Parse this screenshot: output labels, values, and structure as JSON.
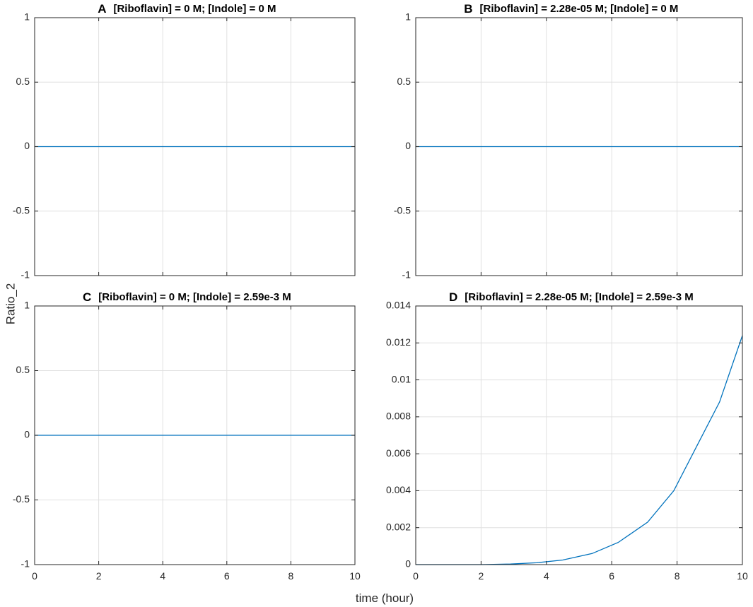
{
  "figure": {
    "ylabel": "Ratio_2",
    "xlabel": "time (hour)",
    "series_color": "#0072BD"
  },
  "chart_data": [
    {
      "type": "line",
      "letter": "A",
      "title": "[Riboflavin] = 0 M; [Indole] = 0 M",
      "xlim": [
        0,
        10
      ],
      "ylim": [
        -1,
        1
      ],
      "xticks": [
        0,
        2,
        4,
        6,
        8,
        10
      ],
      "yticks": [
        1,
        0.5,
        0,
        -0.5,
        -1
      ],
      "ytick_labels": [
        "1",
        "0.5",
        "0",
        "-0.5",
        "-1"
      ],
      "show_xtick_labels": false,
      "grid": true,
      "series": [
        {
          "x": [
            0,
            10
          ],
          "y": [
            0,
            0
          ]
        }
      ]
    },
    {
      "type": "line",
      "letter": "B",
      "title": "[Riboflavin] = 2.28e-05 M; [Indole] = 0 M",
      "xlim": [
        0,
        10
      ],
      "ylim": [
        -1,
        1
      ],
      "xticks": [
        0,
        2,
        4,
        6,
        8,
        10
      ],
      "yticks": [
        1,
        0.5,
        0,
        -0.5,
        -1
      ],
      "ytick_labels": [
        "1",
        "0.5",
        "0",
        "-0.5",
        "-1"
      ],
      "show_xtick_labels": false,
      "grid": true,
      "series": [
        {
          "x": [
            0,
            10
          ],
          "y": [
            0,
            0
          ]
        }
      ]
    },
    {
      "type": "line",
      "letter": "C",
      "title": "[Riboflavin] = 0 M; [Indole] = 2.59e-3 M",
      "xlim": [
        0,
        10
      ],
      "ylim": [
        -1,
        1
      ],
      "xticks": [
        0,
        2,
        4,
        6,
        8,
        10
      ],
      "xtick_labels": [
        "0",
        "2",
        "4",
        "6",
        "8",
        "10"
      ],
      "yticks": [
        1,
        0.5,
        0,
        -0.5,
        -1
      ],
      "ytick_labels": [
        "1",
        "0.5",
        "0",
        "-0.5",
        "-1"
      ],
      "show_xtick_labels": true,
      "grid": true,
      "series": [
        {
          "x": [
            0,
            10
          ],
          "y": [
            0,
            0
          ]
        }
      ]
    },
    {
      "type": "line",
      "letter": "D",
      "title": "[Riboflavin] = 2.28e-05 M; [Indole] = 2.59e-3 M",
      "xlim": [
        0,
        10
      ],
      "ylim": [
        0,
        0.014
      ],
      "xticks": [
        0,
        2,
        4,
        6,
        8,
        10
      ],
      "xtick_labels": [
        "0",
        "2",
        "4",
        "6",
        "8",
        "10"
      ],
      "yticks": [
        0.014,
        0.012,
        0.01,
        0.008,
        0.006,
        0.004,
        0.002,
        0
      ],
      "ytick_labels": [
        "0.014",
        "0.012",
        "0.01",
        "0.008",
        "0.006",
        "0.004",
        "0.002",
        "0"
      ],
      "show_xtick_labels": true,
      "grid": true,
      "series": [
        {
          "x": [
            0,
            2.0,
            2.9,
            3.7,
            4.5,
            5.4,
            6.2,
            7.1,
            7.9,
            8.6,
            9.3,
            10
          ],
          "y": [
            0,
            0,
            3e-05,
            0.0001,
            0.00025,
            0.0006,
            0.0012,
            0.0023,
            0.004,
            0.0064,
            0.0088,
            0.0124
          ]
        }
      ]
    }
  ]
}
